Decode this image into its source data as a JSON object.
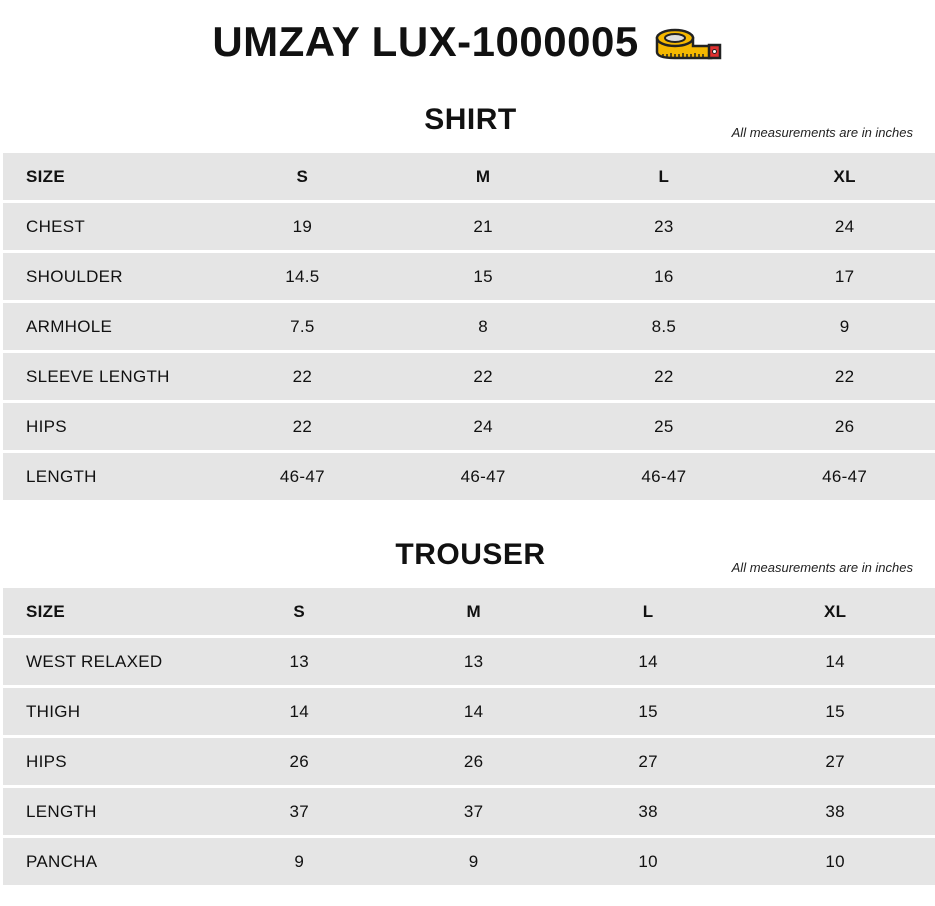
{
  "title": "UMZAY LUX-1000005",
  "title_icon": "measuring-tape-icon",
  "sections": [
    {
      "name": "SHIRT",
      "note": "All measurements are in inches",
      "header": [
        "SIZE",
        "S",
        "M",
        "L",
        "XL"
      ],
      "rows": [
        [
          "CHEST",
          "19",
          "21",
          "23",
          "24"
        ],
        [
          "SHOULDER",
          "14.5",
          "15",
          "16",
          "17"
        ],
        [
          "ARMHOLE",
          "7.5",
          "8",
          "8.5",
          "9"
        ],
        [
          "SLEEVE LENGTH",
          "22",
          "22",
          "22",
          "22"
        ],
        [
          "HIPS",
          "22",
          "24",
          "25",
          "26"
        ],
        [
          "LENGTH",
          "46-47",
          "46-47",
          "46-47",
          "46-47"
        ]
      ]
    },
    {
      "name": "TROUSER",
      "note": "All measurements are in inches",
      "header": [
        "SIZE",
        "S",
        "M",
        "L",
        "XL"
      ],
      "rows": [
        [
          "WEST RELAXED",
          "13",
          "13",
          "14",
          "14"
        ],
        [
          "THIGH",
          "14",
          "14",
          "15",
          "15"
        ],
        [
          "HIPS",
          "26",
          "26",
          "27",
          "27"
        ],
        [
          "LENGTH",
          "37",
          "37",
          "38",
          "38"
        ],
        [
          "PANCHA",
          "9",
          "9",
          "10",
          "10"
        ]
      ]
    }
  ]
}
